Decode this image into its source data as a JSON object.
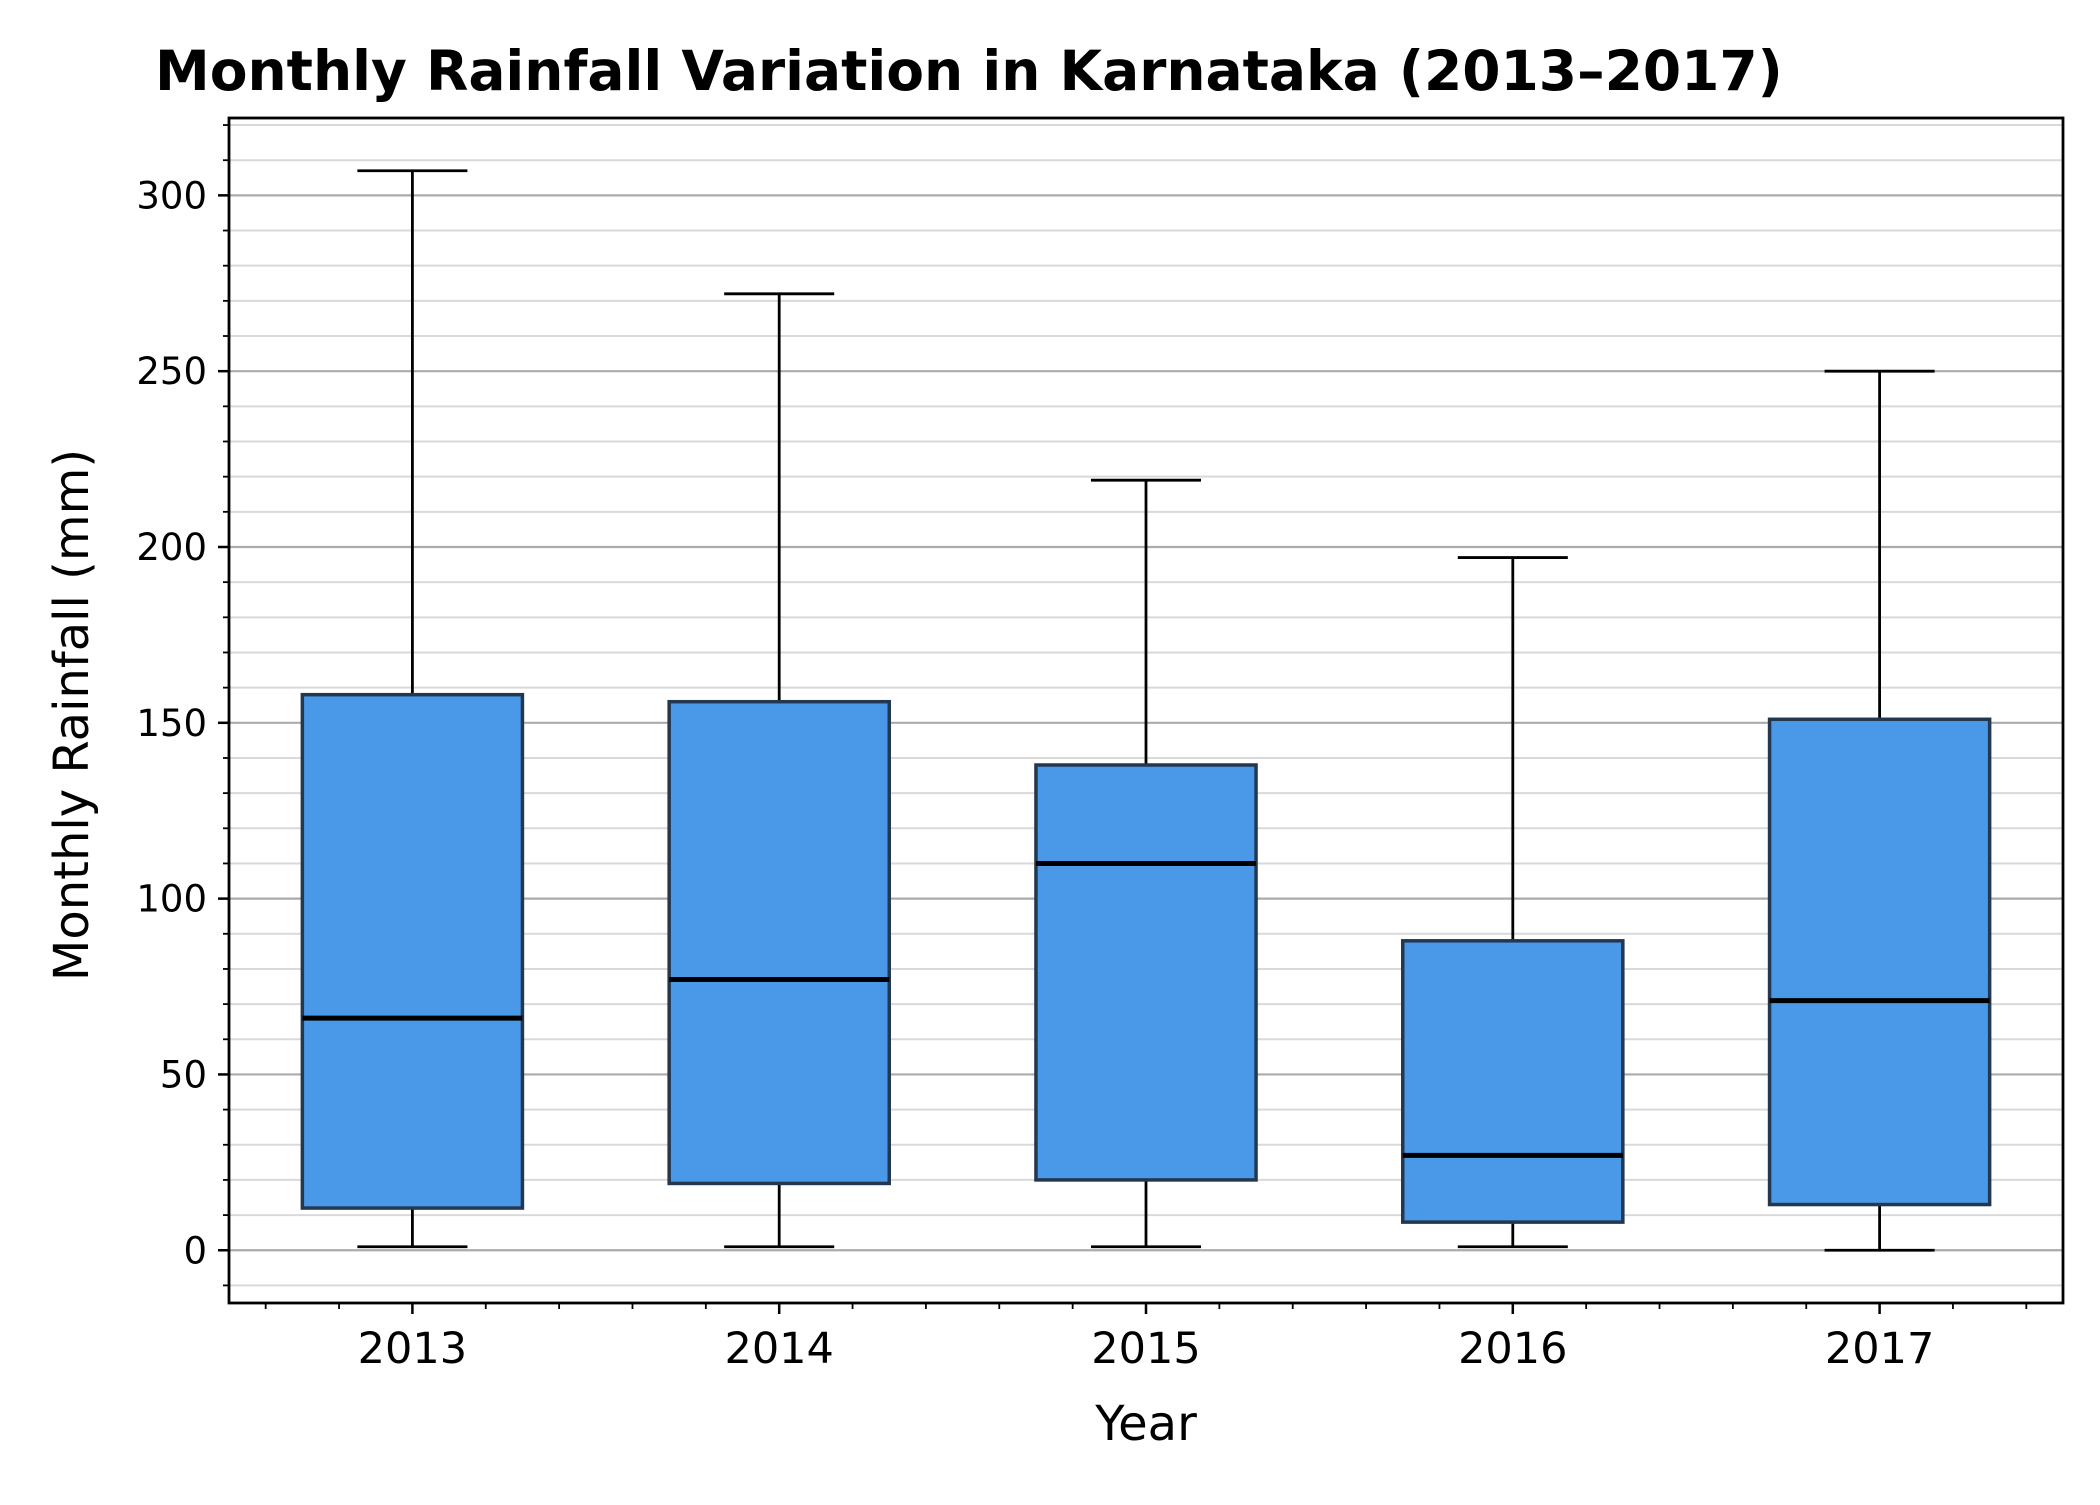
{
  "chart_data": {
    "type": "box",
    "title": "Monthly Rainfall Variation in Karnataka (2013–2017)",
    "xlabel": "Year",
    "ylabel": "Monthly Rainfall (mm)",
    "categories": [
      "2013",
      "2014",
      "2015",
      "2016",
      "2017"
    ],
    "boxes": [
      {
        "category": "2013",
        "whisker_low": 1,
        "q1": 12,
        "median": 66,
        "q3": 158,
        "whisker_high": 307
      },
      {
        "category": "2014",
        "whisker_low": 1,
        "q1": 19,
        "median": 77,
        "q3": 156,
        "whisker_high": 272
      },
      {
        "category": "2015",
        "whisker_low": 1,
        "q1": 20,
        "median": 110,
        "q3": 138,
        "whisker_high": 219
      },
      {
        "category": "2016",
        "whisker_low": 1,
        "q1": 8,
        "median": 27,
        "q3": 88,
        "whisker_high": 197
      },
      {
        "category": "2017",
        "whisker_low": 0,
        "q1": 13,
        "median": 71,
        "q3": 151,
        "whisker_high": 250
      }
    ],
    "ylim": [
      -15,
      322
    ],
    "yticks": [
      0,
      50,
      100,
      150,
      200,
      250,
      300
    ],
    "y_minor_step": 10,
    "grid": "horizontal",
    "legend": "none",
    "colors": {
      "box_fill": "#4A99E9",
      "box_edge": "#23384F",
      "median": "#000000",
      "whisker": "#000000",
      "grid_major": "#ABABAB",
      "grid_minor": "#D9D9D9"
    }
  }
}
